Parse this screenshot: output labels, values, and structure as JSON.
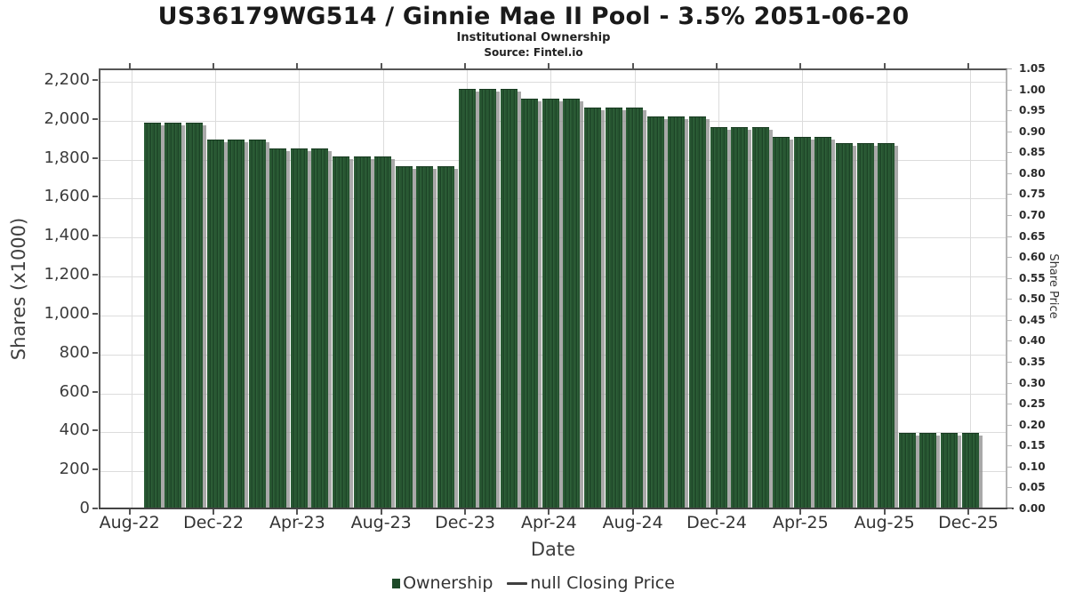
{
  "title": "US36179WG514 / Ginnie Mae II Pool - 3.5% 2051-06-20",
  "subtitle": "Institutional Ownership",
  "source": "Source: Fintel.io",
  "colors": {
    "bar": "#275531",
    "bar_stripe_light": "#2e6139",
    "bar_stripe_dark": "#1c4326",
    "bar_shadow": "#949494",
    "legend_square": "#1d4a28",
    "grid": "#dcdcdc",
    "axis": "#565656"
  },
  "chart_data": {
    "type": "bar",
    "title": "US36179WG514 / Ginnie Mae II Pool - 3.5% 2051-06-20",
    "subtitle": "Institutional Ownership",
    "source": "Source: Fintel.io",
    "xlabel": "Date",
    "ylabel_left": "Shares (x1000)",
    "ylabel_right": "Share Price",
    "grid": true,
    "legend_position": "bottom",
    "ylim_left": [
      0,
      2260
    ],
    "ylim_right": [
      0,
      1.05
    ],
    "y_left_tick_labels": [
      "0",
      "200",
      "400",
      "600",
      "800",
      "1,000",
      "1,200",
      "1,400",
      "1,600",
      "1,800",
      "2,000",
      "2,200"
    ],
    "y_left_tick_values": [
      0,
      200,
      400,
      600,
      800,
      1000,
      1200,
      1400,
      1600,
      1800,
      2000,
      2200
    ],
    "y_right_tick_labels": [
      "0.00",
      "0.05",
      "0.10",
      "0.15",
      "0.20",
      "0.25",
      "0.30",
      "0.35",
      "0.40",
      "0.45",
      "0.50",
      "0.55",
      "0.60",
      "0.65",
      "0.70",
      "0.75",
      "0.80",
      "0.85",
      "0.90",
      "0.95",
      "1.00",
      "1.05"
    ],
    "x_tick_labels": [
      "Aug-22",
      "Dec-22",
      "Apr-23",
      "Aug-23",
      "Dec-23",
      "Apr-24",
      "Aug-24",
      "Dec-24",
      "Apr-25",
      "Aug-25",
      "Dec-25"
    ],
    "bars": [
      {
        "month": "Sep-22",
        "value": 1975
      },
      {
        "month": "Oct-22",
        "value": 1975
      },
      {
        "month": "Nov-22",
        "value": 1975
      },
      {
        "month": "Dec-22",
        "value": 1890
      },
      {
        "month": "Jan-23",
        "value": 1890
      },
      {
        "month": "Feb-23",
        "value": 1890
      },
      {
        "month": "Mar-23",
        "value": 1845
      },
      {
        "month": "Apr-23",
        "value": 1845
      },
      {
        "month": "May-23",
        "value": 1845
      },
      {
        "month": "Jun-23",
        "value": 1805
      },
      {
        "month": "Jul-23",
        "value": 1805
      },
      {
        "month": "Aug-23",
        "value": 1805
      },
      {
        "month": "Sep-23",
        "value": 1755
      },
      {
        "month": "Oct-23",
        "value": 1755
      },
      {
        "month": "Nov-23",
        "value": 1755
      },
      {
        "month": "Dec-23",
        "value": 2150
      },
      {
        "month": "Jan-24",
        "value": 2150
      },
      {
        "month": "Feb-24",
        "value": 2150
      },
      {
        "month": "Mar-24",
        "value": 2100
      },
      {
        "month": "Apr-24",
        "value": 2100
      },
      {
        "month": "May-24",
        "value": 2100
      },
      {
        "month": "Jun-24",
        "value": 2055
      },
      {
        "month": "Jul-24",
        "value": 2055
      },
      {
        "month": "Aug-24",
        "value": 2055
      },
      {
        "month": "Sep-24",
        "value": 2010
      },
      {
        "month": "Oct-24",
        "value": 2010
      },
      {
        "month": "Nov-24",
        "value": 2010
      },
      {
        "month": "Dec-24",
        "value": 1955
      },
      {
        "month": "Jan-25",
        "value": 1955
      },
      {
        "month": "Feb-25",
        "value": 1955
      },
      {
        "month": "Mar-25",
        "value": 1905
      },
      {
        "month": "Apr-25",
        "value": 1905
      },
      {
        "month": "May-25",
        "value": 1905
      },
      {
        "month": "Jun-25",
        "value": 1870
      },
      {
        "month": "Jul-25",
        "value": 1870
      },
      {
        "month": "Aug-25",
        "value": 1870
      },
      {
        "month": "Sep-25",
        "value": 385
      },
      {
        "month": "Oct-25",
        "value": 385
      },
      {
        "month": "Nov-25",
        "value": 385
      },
      {
        "month": "Dec-25",
        "value": 385
      }
    ],
    "legend": [
      {
        "label": "Ownership",
        "marker": "square",
        "color": "#1d4a28"
      },
      {
        "label": "null Closing Price",
        "marker": "line",
        "color": "#3f3f3f"
      }
    ]
  }
}
